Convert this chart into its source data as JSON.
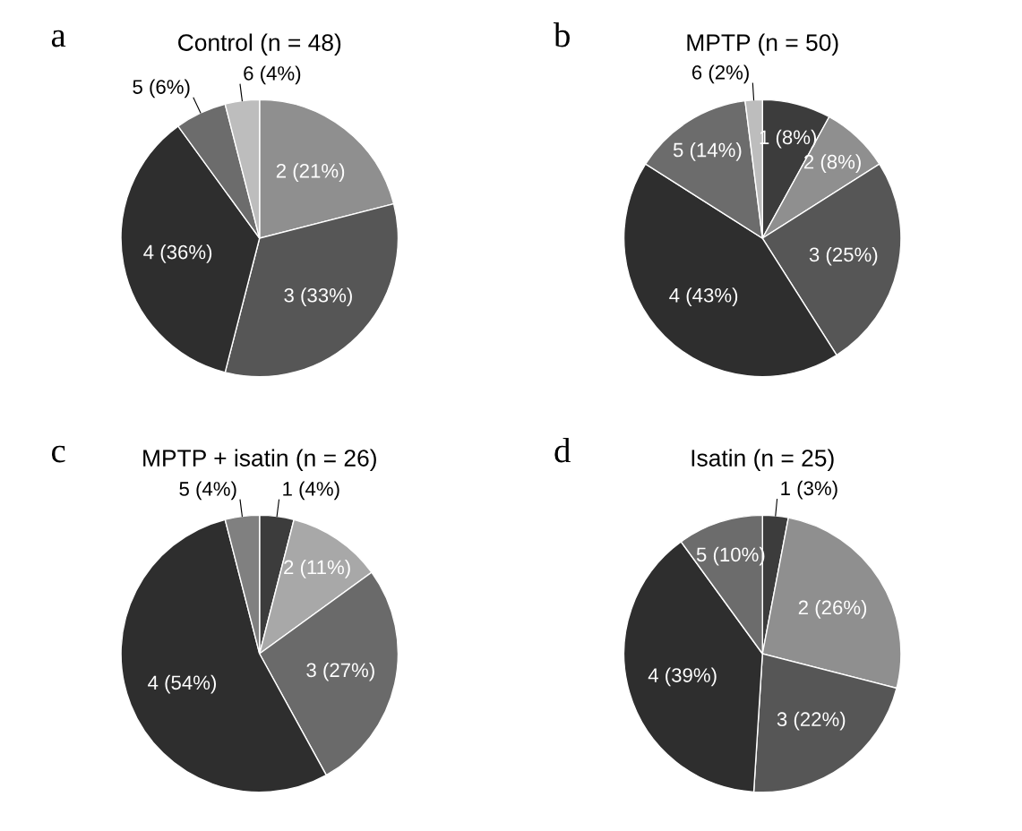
{
  "chart_data": [
    {
      "type": "pie",
      "title": "Control (n = 48)",
      "annotations": [
        "a"
      ],
      "categories": [
        "2 (21%)",
        "3 (33%)",
        "4 (36%)",
        "5 (6%)",
        "6 (4%)"
      ],
      "values": [
        21,
        33,
        36,
        6,
        4
      ],
      "colors": [
        "#8f8f8f",
        "#565656",
        "#2e2e2e",
        "#6c6c6c",
        "#bdbdbd"
      ]
    },
    {
      "type": "pie",
      "title": "MPTP (n = 50)",
      "annotations": [
        "b"
      ],
      "categories": [
        "1 (8%)",
        "2 (8%)",
        "3 (25%)",
        "4 (43%)",
        "5 (14%)",
        "6 (2%)"
      ],
      "values": [
        8,
        8,
        25,
        43,
        14,
        2
      ],
      "colors": [
        "#3c3c3c",
        "#8f8f8f",
        "#565656",
        "#2e2e2e",
        "#6c6c6c",
        "#bdbdbd"
      ]
    },
    {
      "type": "pie",
      "title": "MPTP + isatin (n = 26)",
      "annotations": [
        "c"
      ],
      "categories": [
        "1 (4%)",
        "2 (11%)",
        "3 (27%)",
        "4 (54%)",
        "5 (4%)"
      ],
      "values": [
        4,
        11,
        27,
        54,
        4
      ],
      "colors": [
        "#3c3c3c",
        "#a8a8a8",
        "#6a6a6a",
        "#2e2e2e",
        "#808080"
      ]
    },
    {
      "type": "pie",
      "title": "Isatin (n = 25)",
      "annotations": [
        "d"
      ],
      "categories": [
        "1 (3%)",
        "2 (26%)",
        "3 (22%)",
        "4 (39%)",
        "5 (10%)"
      ],
      "values": [
        3,
        26,
        22,
        39,
        10
      ],
      "colors": [
        "#3c3c3c",
        "#8f8f8f",
        "#565656",
        "#2e2e2e",
        "#6c6c6c"
      ]
    }
  ]
}
